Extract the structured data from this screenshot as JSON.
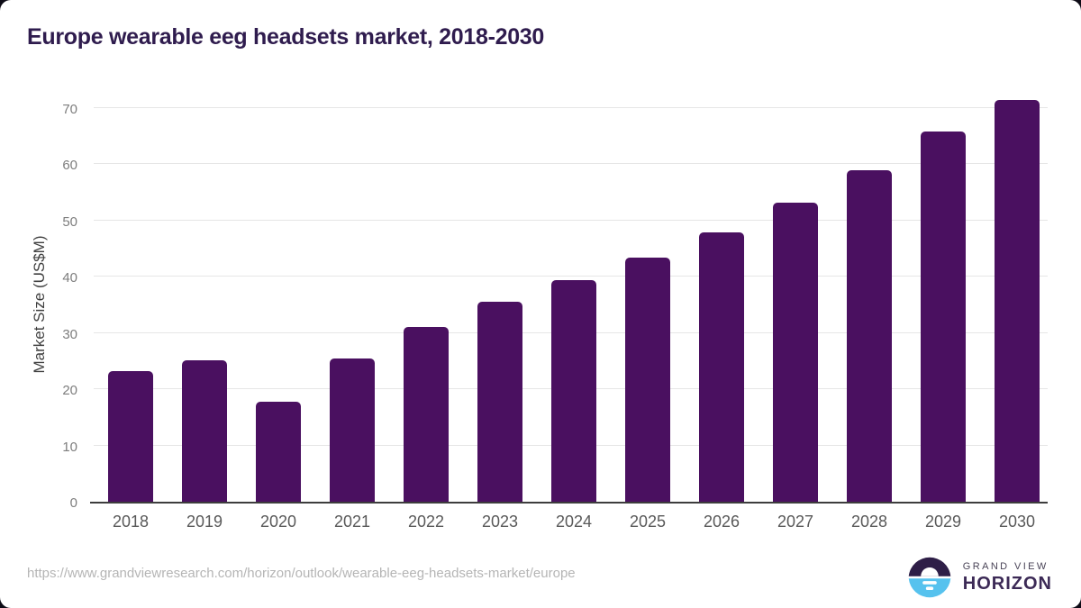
{
  "header": {
    "title": "Europe wearable eeg headsets market, 2018-2030"
  },
  "footer": {
    "source_url": "https://www.grandviewresearch.com/horizon/outlook/wearable-eeg-headsets-market/europe",
    "logo": {
      "icon": "horizon-sun-icon",
      "line1": "GRAND VIEW",
      "line2": "HORIZON"
    }
  },
  "colors": {
    "bar": "#4a1060",
    "grid": "#e6e6e6",
    "axis": "#3d3d3d",
    "title": "#2f1c4e",
    "tick": "#7d7d7d",
    "xlabel": "#595959",
    "url": "#b5b5b5",
    "logo_blue": "#56c2ee",
    "logo_dark": "#2e1e47",
    "logo_text": "#3c2a56"
  },
  "chart_data": {
    "type": "bar",
    "title": "Europe wearable eeg headsets market, 2018-2030",
    "xlabel": "",
    "ylabel": "Market Size (US$M)",
    "categories": [
      "2018",
      "2019",
      "2020",
      "2021",
      "2022",
      "2023",
      "2024",
      "2025",
      "2026",
      "2027",
      "2028",
      "2029",
      "2030"
    ],
    "values": [
      23.2,
      25.1,
      17.8,
      25.4,
      31.1,
      35.5,
      39.4,
      43.4,
      47.9,
      53.2,
      59.0,
      65.9,
      71.5
    ],
    "ylim": [
      0,
      70
    ],
    "yticks": [
      0,
      10,
      20,
      30,
      40,
      50,
      60,
      70
    ],
    "grid": true,
    "legend": false,
    "bar_color": "#4a1060"
  }
}
